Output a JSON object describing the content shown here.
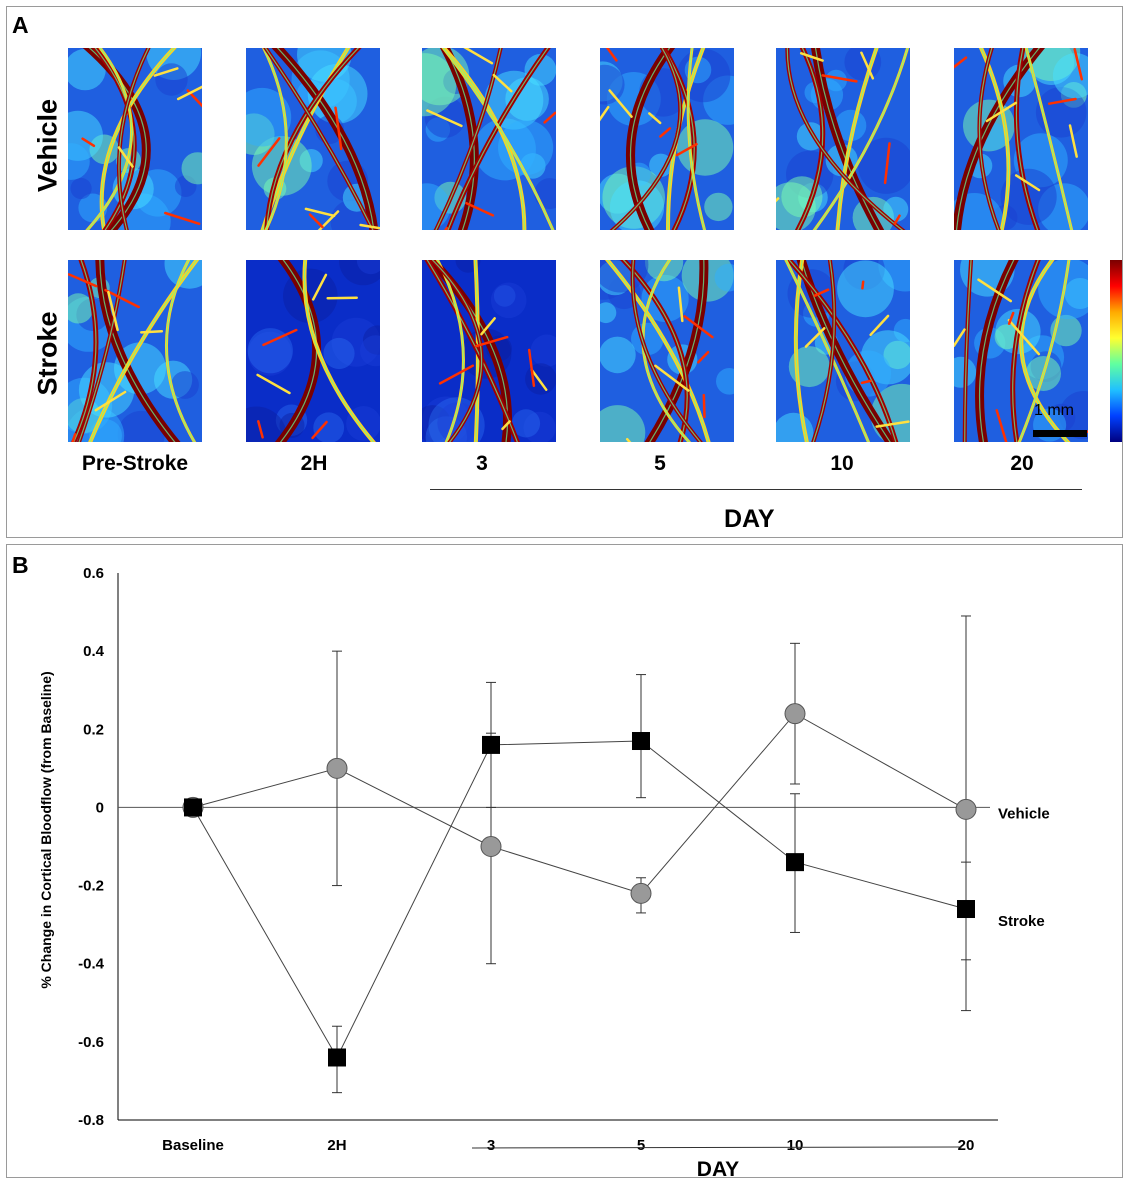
{
  "panelA": {
    "letter": "A",
    "rows": [
      "Vehicle",
      "Stroke"
    ],
    "timepoints": [
      "Pre-Stroke",
      "2H",
      "3",
      "5",
      "10",
      "20"
    ],
    "day_label": "DAY",
    "scale_label": "1 mm",
    "colormap": [
      "#7a0000",
      "#ff0000",
      "#ffaa00",
      "#ffff30",
      "#60ffa0",
      "#20c0ff",
      "#0040ff",
      "#000080"
    ]
  },
  "panelB": {
    "letter": "B",
    "day_label": "DAY"
  },
  "chart_data": {
    "type": "line",
    "categories": [
      "Baseline",
      "2H",
      "3",
      "5",
      "10",
      "20"
    ],
    "ylabel": "% Change in Cortical Bloodflow (from Baseline)",
    "xlabel": "DAY",
    "ylim": [
      -0.8,
      0.6
    ],
    "yticks": [
      "0.6",
      "0.4",
      "0.2",
      "0",
      "-0.2",
      "-0.4",
      "-0.6",
      "-0.8"
    ],
    "ytick_values": [
      0.6,
      0.4,
      0.2,
      0,
      -0.2,
      -0.4,
      -0.6,
      -0.8
    ],
    "series": [
      {
        "name": "Vehicle",
        "marker": "circle",
        "color": "#999999",
        "values": [
          0,
          0.1,
          -0.1,
          -0.22,
          0.24,
          -0.005
        ],
        "err_high": [
          0,
          0.4,
          0.19,
          -0.18,
          0.42,
          0.49
        ],
        "err_low": [
          0,
          -0.2,
          -0.4,
          -0.27,
          0.06,
          -0.52
        ]
      },
      {
        "name": "Stroke",
        "marker": "square",
        "color": "#000000",
        "values": [
          0,
          -0.64,
          0.16,
          0.17,
          -0.14,
          -0.26
        ],
        "err_high": [
          0,
          -0.56,
          0.32,
          0.34,
          0.035,
          -0.14
        ],
        "err_low": [
          0,
          -0.73,
          0,
          0.025,
          -0.32,
          -0.39
        ]
      }
    ]
  }
}
